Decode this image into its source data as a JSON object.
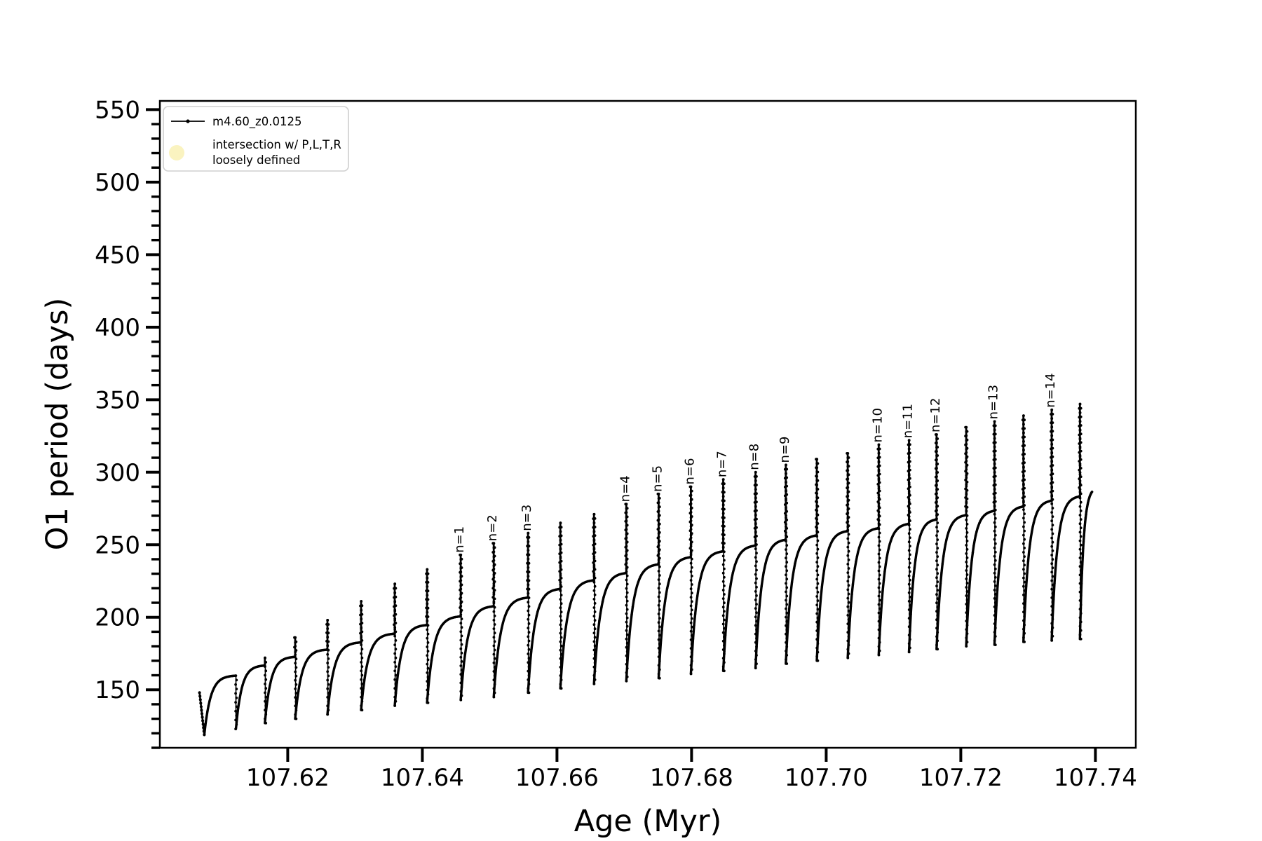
{
  "chart_data": {
    "type": "line",
    "title": "",
    "xlabel": "Age (Myr)",
    "ylabel": "O1 period (days)",
    "xlim": [
      107.601,
      107.746
    ],
    "ylim": [
      110,
      556
    ],
    "grid": false,
    "x_ticks": [
      107.62,
      107.64,
      107.66,
      107.68,
      107.7,
      107.72,
      107.74
    ],
    "x_tick_labels": [
      "107.62",
      "107.64",
      "107.66",
      "107.68",
      "107.70",
      "107.72",
      "107.74"
    ],
    "x_minor_step": 0.005,
    "y_ticks": [
      150,
      200,
      250,
      300,
      350,
      400,
      450,
      500,
      550
    ],
    "y_tick_labels": [
      "150",
      "200",
      "250",
      "300",
      "350",
      "400",
      "450",
      "500",
      "550"
    ],
    "y_minor_step": 10,
    "legend": {
      "position": "upper left",
      "entries": [
        {
          "label": "m4.60_z0.0125",
          "marker": "line-dot",
          "color": "#000000"
        },
        {
          "label_lines": [
            "intersection w/ P,L,T,R",
            "loosely defined"
          ],
          "marker": "circle",
          "color": "#faf3c0"
        }
      ]
    },
    "series": [
      {
        "name": "m4.60_z0.0125",
        "color": "#000000",
        "start": {
          "age": 107.6069,
          "period": 148
        },
        "end": {
          "age": 107.7395,
          "period": 286
        },
        "cycles": [
          {
            "age": 107.6076,
            "min": 119,
            "spike": null,
            "plateau": 160,
            "label": null
          },
          {
            "age": 107.6123,
            "min": 123,
            "spike": null,
            "plateau": 167,
            "label": null
          },
          {
            "age": 107.6166,
            "min": 127,
            "spike": 172,
            "plateau": 173,
            "label": null
          },
          {
            "age": 107.6211,
            "min": 130,
            "spike": 186,
            "plateau": 178,
            "label": null
          },
          {
            "age": 107.6259,
            "min": 133,
            "spike": 198,
            "plateau": 183,
            "label": null
          },
          {
            "age": 107.6309,
            "min": 136,
            "spike": 211,
            "plateau": 189,
            "label": null
          },
          {
            "age": 107.6359,
            "min": 139,
            "spike": 223,
            "plateau": 195,
            "label": null
          },
          {
            "age": 107.6407,
            "min": 141,
            "spike": 233,
            "plateau": 201,
            "label": null
          },
          {
            "age": 107.6457,
            "min": 143,
            "spike": 243,
            "plateau": 208,
            "label": "n=1"
          },
          {
            "age": 107.6506,
            "min": 145,
            "spike": 251,
            "plateau": 214,
            "label": "n=2"
          },
          {
            "age": 107.6557,
            "min": 148,
            "spike": 258,
            "plateau": 220,
            "label": "n=3"
          },
          {
            "age": 107.6605,
            "min": 151,
            "spike": 265,
            "plateau": 226,
            "label": null
          },
          {
            "age": 107.6655,
            "min": 154,
            "spike": 271,
            "plateau": 231,
            "label": null
          },
          {
            "age": 107.6703,
            "min": 156,
            "spike": 278,
            "plateau": 237,
            "label": "n=4"
          },
          {
            "age": 107.6751,
            "min": 158,
            "spike": 285,
            "plateau": 242,
            "label": "n=5"
          },
          {
            "age": 107.6799,
            "min": 161,
            "spike": 290,
            "plateau": 246,
            "label": "n=6"
          },
          {
            "age": 107.6847,
            "min": 163,
            "spike": 295,
            "plateau": 250,
            "label": "n=7"
          },
          {
            "age": 107.6895,
            "min": 165,
            "spike": 300,
            "plateau": 254,
            "label": "n=8"
          },
          {
            "age": 107.694,
            "min": 168,
            "spike": 305,
            "plateau": 257,
            "label": "n=9"
          },
          {
            "age": 107.6986,
            "min": 170,
            "spike": 309,
            "plateau": 260,
            "label": null
          },
          {
            "age": 107.7032,
            "min": 172,
            "spike": 313,
            "plateau": 262,
            "label": null
          },
          {
            "age": 107.7078,
            "min": 174,
            "spike": 319,
            "plateau": 265,
            "label": "n=10"
          },
          {
            "age": 107.7123,
            "min": 176,
            "spike": 322,
            "plateau": 268,
            "label": "n=11"
          },
          {
            "age": 107.7164,
            "min": 178,
            "spike": 326,
            "plateau": 271,
            "label": "n=12"
          },
          {
            "age": 107.7208,
            "min": 180,
            "spike": 331,
            "plateau": 274,
            "label": null
          },
          {
            "age": 107.725,
            "min": 181,
            "spike": 335,
            "plateau": 277,
            "label": "n=13"
          },
          {
            "age": 107.7293,
            "min": 183,
            "spike": 339,
            "plateau": 281,
            "label": null
          },
          {
            "age": 107.7335,
            "min": 184,
            "spike": 343,
            "plateau": 284,
            "label": "n=14"
          },
          {
            "age": 107.7377,
            "min": 185,
            "spike": 347,
            "plateau": 290,
            "label": null
          }
        ]
      }
    ]
  }
}
